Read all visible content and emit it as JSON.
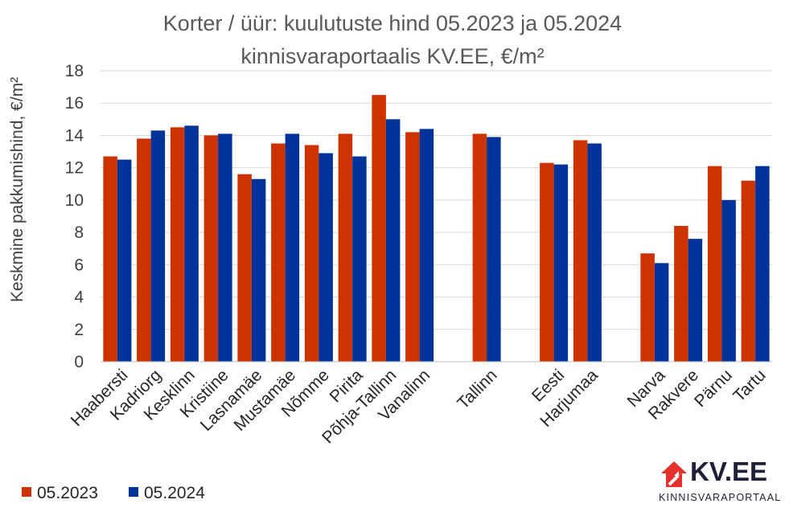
{
  "colors": {
    "series_2023": "#cc3300",
    "series_2024": "#003399",
    "logo_red": "#e4312b",
    "logo_dark": "#1f1f3a"
  },
  "logo": {
    "name": "KV.EE",
    "tagline": "KINNISVARAPORTAAL",
    "icon": "house-arrow-icon"
  },
  "chart_data": {
    "type": "bar",
    "title": "Korter / üür: kuulutuste hind 05.2023 ja 05.2024",
    "subtitle": "kinnisvaraportaalis KV.EE, €/m²",
    "ylabel": "Keskmine pakkumishind, €/m²",
    "xlabel": "",
    "ylim": [
      0,
      18
    ],
    "yticks": [
      "0",
      "2",
      "4",
      "6",
      "8",
      "10",
      "12",
      "14",
      "16",
      "18"
    ],
    "grid": true,
    "legend_position": "bottom-left",
    "categories": [
      "Haabersti",
      "Kadriorg",
      "Kesklinn",
      "Kristiine",
      "Lasnamäe",
      "Mustamäe",
      "Nõmme",
      "Pirita",
      "Põhja-Tallinn",
      "Vanalinn",
      "",
      "Tallinn",
      "",
      "Eesti",
      "Harjumaa",
      "",
      "Narva",
      "Rakvere",
      "Pärnu",
      "Tartu"
    ],
    "series": [
      {
        "name": "05.2023",
        "values": [
          12.7,
          13.8,
          14.5,
          14.0,
          11.6,
          13.5,
          13.4,
          14.1,
          16.5,
          14.2,
          null,
          14.1,
          null,
          12.3,
          13.7,
          null,
          6.7,
          8.4,
          12.1,
          11.2
        ]
      },
      {
        "name": "05.2024",
        "values": [
          12.5,
          14.3,
          14.6,
          14.1,
          11.3,
          14.1,
          12.9,
          12.7,
          15.0,
          14.4,
          null,
          13.9,
          null,
          12.2,
          13.5,
          null,
          6.1,
          7.6,
          10.0,
          12.1
        ]
      }
    ]
  }
}
